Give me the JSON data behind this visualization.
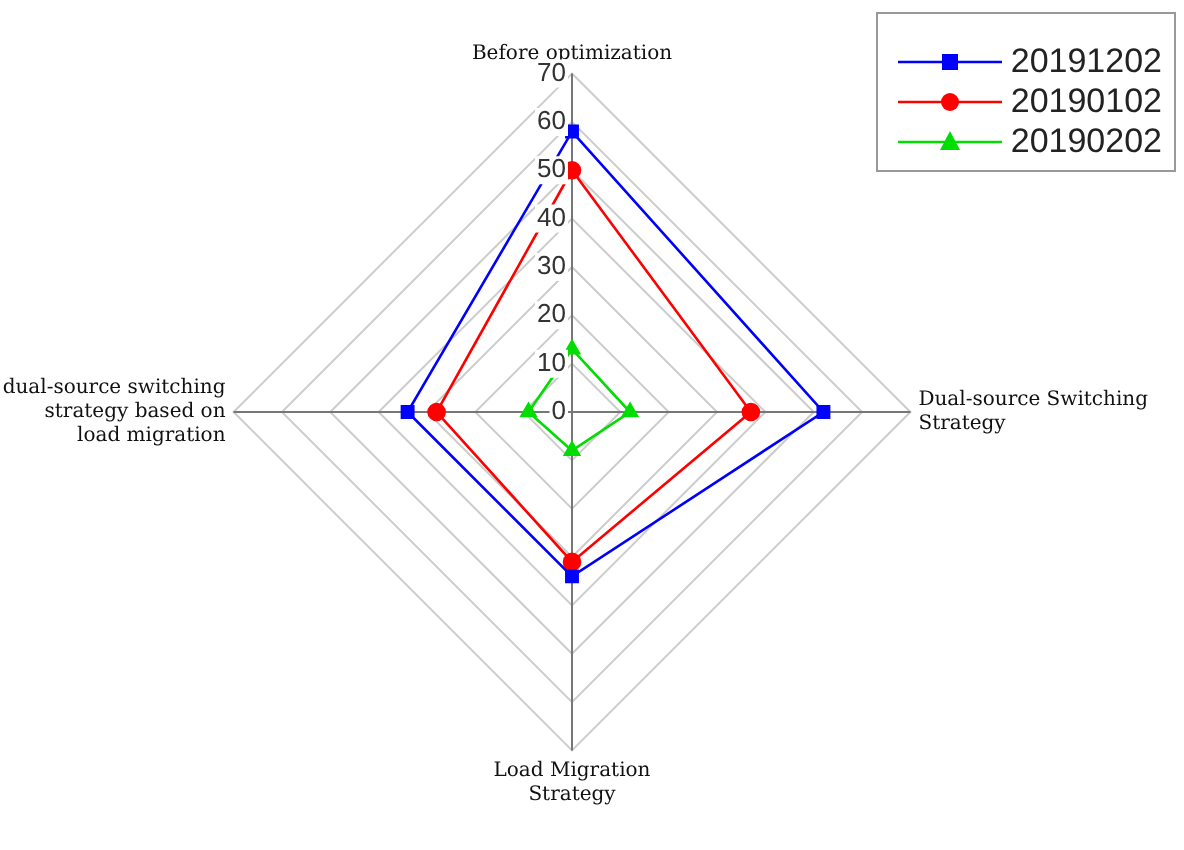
{
  "chart_data": {
    "type": "radar",
    "categories": [
      "Before optimization",
      "Dual-source Switching Strategy",
      "Load Migration Strategy",
      "dual-source switching strategy based on load migration"
    ],
    "series": [
      {
        "name": "20191202",
        "color": "#0000ff",
        "marker": "square",
        "values": [
          58,
          52,
          34,
          34
        ]
      },
      {
        "name": "20190102",
        "color": "#ff0000",
        "marker": "circle",
        "values": [
          50,
          37,
          31,
          28
        ]
      },
      {
        "name": "20190202",
        "color": "#00dd00",
        "marker": "triangle",
        "values": [
          13,
          12,
          8,
          9
        ]
      }
    ],
    "ylim": [
      0,
      70
    ],
    "yticks": [
      0,
      10,
      20,
      30,
      40,
      50,
      60,
      70
    ],
    "grid": true,
    "legend": "top right"
  }
}
